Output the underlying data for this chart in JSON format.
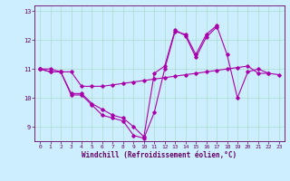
{
  "xlabel": "Windchill (Refroidissement éolien,°C)",
  "bg_color": "#cceeff",
  "grid_color": "#aaddcc",
  "line_color": "#aa00aa",
  "x": [
    0,
    1,
    2,
    3,
    4,
    5,
    6,
    7,
    8,
    9,
    10,
    11,
    12,
    13,
    14,
    15,
    16,
    17,
    18,
    19,
    20,
    21,
    22,
    23
  ],
  "line1": [
    11.0,
    10.9,
    10.9,
    10.1,
    10.1,
    9.75,
    9.4,
    9.3,
    9.2,
    8.7,
    8.6,
    9.5,
    11.0,
    12.3,
    12.2,
    11.5,
    12.2,
    12.5,
    11.5,
    10.0,
    10.9,
    11.0,
    10.85,
    null
  ],
  "line2": [
    11.0,
    10.9,
    10.9,
    10.15,
    10.15,
    9.8,
    9.6,
    9.4,
    9.3,
    9.0,
    8.65,
    10.85,
    11.1,
    12.35,
    12.15,
    11.4,
    12.1,
    12.45,
    null,
    null,
    null,
    null,
    null,
    null
  ],
  "line3": [
    11.0,
    11.0,
    10.9,
    10.9,
    10.4,
    10.4,
    10.4,
    10.45,
    10.5,
    10.55,
    10.6,
    10.65,
    10.7,
    10.75,
    10.8,
    10.85,
    10.9,
    10.95,
    11.0,
    11.05,
    11.1,
    10.85,
    10.85,
    10.8
  ],
  "ylim": [
    8.5,
    13.2
  ],
  "xlim": [
    -0.5,
    23.5
  ],
  "yticks": [
    9,
    10,
    11,
    12,
    13
  ],
  "xticks": [
    0,
    1,
    2,
    3,
    4,
    5,
    6,
    7,
    8,
    9,
    10,
    11,
    12,
    13,
    14,
    15,
    16,
    17,
    18,
    19,
    20,
    21,
    22,
    23
  ],
  "xlabel_fontsize": 5.5,
  "tick_fontsize": 4.5,
  "ylabel_fontsize": 5.5,
  "linewidth": 0.8,
  "markersize": 1.8
}
